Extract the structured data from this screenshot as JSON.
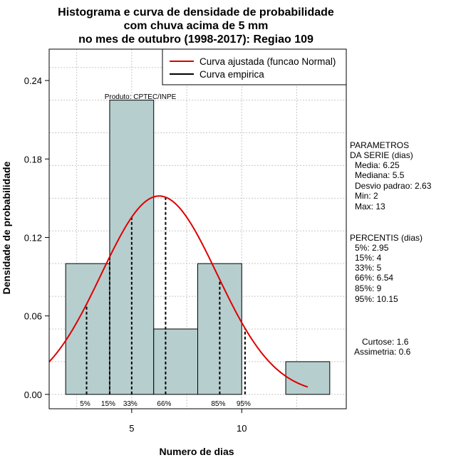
{
  "chart_data": {
    "type": "bar",
    "title_lines": [
      "Histograma e curva de densidade de probabilidade",
      "com chuva acima de 5 mm",
      "no mes de outubro (1998-2017): Regiao 109"
    ],
    "xlabel": "Numero de dias",
    "ylabel": "Densidade de probabilidade",
    "xlim": [
      1.25,
      14.75
    ],
    "ylim": [
      -0.011,
      0.264
    ],
    "x_ticks": [
      5,
      10
    ],
    "y_ticks": [
      0.0,
      0.06,
      0.12,
      0.18,
      0.24
    ],
    "y_tick_labels": [
      "0.00",
      "0.06",
      "0.12",
      "0.18",
      "0.24"
    ],
    "grid": true,
    "bins": [
      {
        "x0": 2,
        "x1": 4,
        "density": 0.1
      },
      {
        "x0": 4,
        "x1": 6,
        "density": 0.225
      },
      {
        "x0": 6,
        "x1": 8,
        "density": 0.05
      },
      {
        "x0": 8,
        "x1": 10,
        "density": 0.1
      },
      {
        "x0": 10,
        "x1": 12,
        "density": 0.0
      },
      {
        "x0": 12,
        "x1": 14,
        "density": 0.025
      }
    ],
    "bar_color": "#b7cece",
    "normal_curve": {
      "mean": 6.25,
      "sd": 2.63,
      "x_from": 1.25,
      "x_to": 13,
      "color": "#dd0000"
    },
    "percentile_lines": [
      {
        "label": "5%",
        "x": 2.95
      },
      {
        "label": "15%",
        "x": 4
      },
      {
        "label": "33%",
        "x": 5
      },
      {
        "label": "66%",
        "x": 6.54
      },
      {
        "label": "85%",
        "x": 9
      },
      {
        "label": "95%",
        "x": 10.15
      }
    ],
    "legend": {
      "position": "top-right",
      "entries": [
        {
          "label": "Curva ajustada (funcao Normal)",
          "color": "#dd0000"
        },
        {
          "label": "Curva empirica",
          "color": "#000000"
        }
      ]
    },
    "product_label": "Produto: CPTEC/INPE",
    "side_panel": {
      "parametros": [
        "PARAMETROS",
        "DA SERIE (dias)",
        "Media: 6.25",
        "Mediana: 5.5",
        "Desvio padrao: 2.63",
        "Min: 2",
        "Max: 13"
      ],
      "percentis": [
        "PERCENTIS (dias)",
        "5%: 2.95",
        "15%: 4",
        "33%: 5",
        "66%: 6.54",
        "85%: 9",
        "95%: 10.15"
      ],
      "stats": [
        "Curtose: 1.6",
        "Assimetria: 0.6"
      ]
    }
  }
}
